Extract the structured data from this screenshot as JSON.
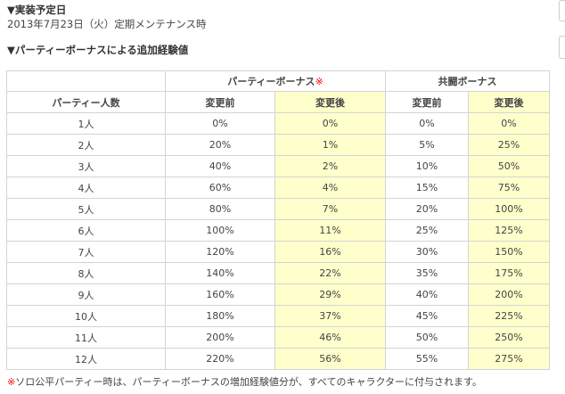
{
  "implementation": {
    "heading": "▼実装予定日",
    "date_text": "2013年7月23日（火）定期メンテナンス時"
  },
  "party_bonus_section": {
    "heading": "▼パーティーボーナスによる追加経験値"
  },
  "table": {
    "group_headers": {
      "party_bonus": "パーティーボーナス",
      "party_bonus_mark": "※",
      "co_fight_bonus": "共闘ボーナス"
    },
    "column_headers": {
      "party_size": "パーティー人数",
      "before": "変更前",
      "after": "変更後",
      "before2": "変更前",
      "after2": "変更後"
    },
    "rows": [
      {
        "size": "1人",
        "pb_before": "0%",
        "pb_after": "0%",
        "cb_before": "0%",
        "cb_after": "0%"
      },
      {
        "size": "2人",
        "pb_before": "20%",
        "pb_after": "1%",
        "cb_before": "5%",
        "cb_after": "25%"
      },
      {
        "size": "3人",
        "pb_before": "40%",
        "pb_after": "2%",
        "cb_before": "10%",
        "cb_after": "50%"
      },
      {
        "size": "4人",
        "pb_before": "60%",
        "pb_after": "4%",
        "cb_before": "15%",
        "cb_after": "75%"
      },
      {
        "size": "5人",
        "pb_before": "80%",
        "pb_after": "7%",
        "cb_before": "20%",
        "cb_after": "100%"
      },
      {
        "size": "6人",
        "pb_before": "100%",
        "pb_after": "11%",
        "cb_before": "25%",
        "cb_after": "125%"
      },
      {
        "size": "7人",
        "pb_before": "120%",
        "pb_after": "16%",
        "cb_before": "30%",
        "cb_after": "150%"
      },
      {
        "size": "8人",
        "pb_before": "140%",
        "pb_after": "22%",
        "cb_before": "35%",
        "cb_after": "175%"
      },
      {
        "size": "9人",
        "pb_before": "160%",
        "pb_after": "29%",
        "cb_before": "40%",
        "cb_after": "200%"
      },
      {
        "size": "10人",
        "pb_before": "180%",
        "pb_after": "37%",
        "cb_before": "45%",
        "cb_after": "225%"
      },
      {
        "size": "11人",
        "pb_before": "200%",
        "pb_after": "46%",
        "cb_before": "50%",
        "cb_after": "250%"
      },
      {
        "size": "12人",
        "pb_before": "220%",
        "pb_after": "56%",
        "cb_before": "55%",
        "cb_after": "275%"
      }
    ]
  },
  "footnote": {
    "mark": "※",
    "text": "ソロ公平パーティー時は、パーティーボーナスの増加経験値分が、すべてのキャラクターに付与されます。"
  },
  "colors": {
    "highlight": "#ffffcc",
    "border": "#d4d4d4",
    "mark": "#ff0000"
  }
}
